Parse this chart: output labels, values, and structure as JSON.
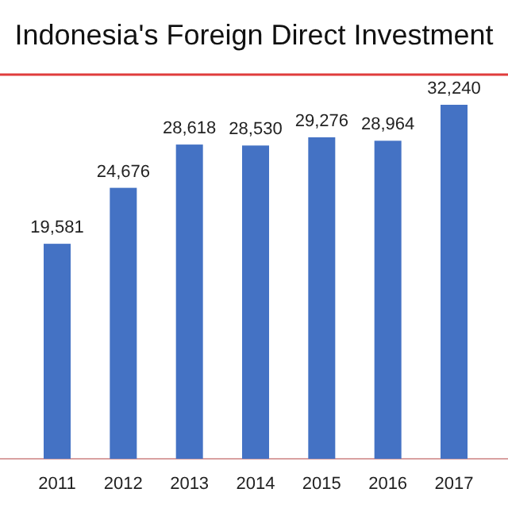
{
  "chart_data": {
    "type": "bar",
    "title": "Indonesia's Foreign Direct Investment",
    "categories": [
      "2011",
      "2012",
      "2013",
      "2014",
      "2015",
      "2016",
      "2017"
    ],
    "values": [
      19581,
      24676,
      28618,
      28530,
      29276,
      28964,
      32240
    ],
    "value_labels": [
      "19,581",
      "24,676",
      "28,618",
      "28,530",
      "29,276",
      "28,964",
      "32,240"
    ],
    "color": "#4472c4",
    "tick_labels": "x"
  }
}
